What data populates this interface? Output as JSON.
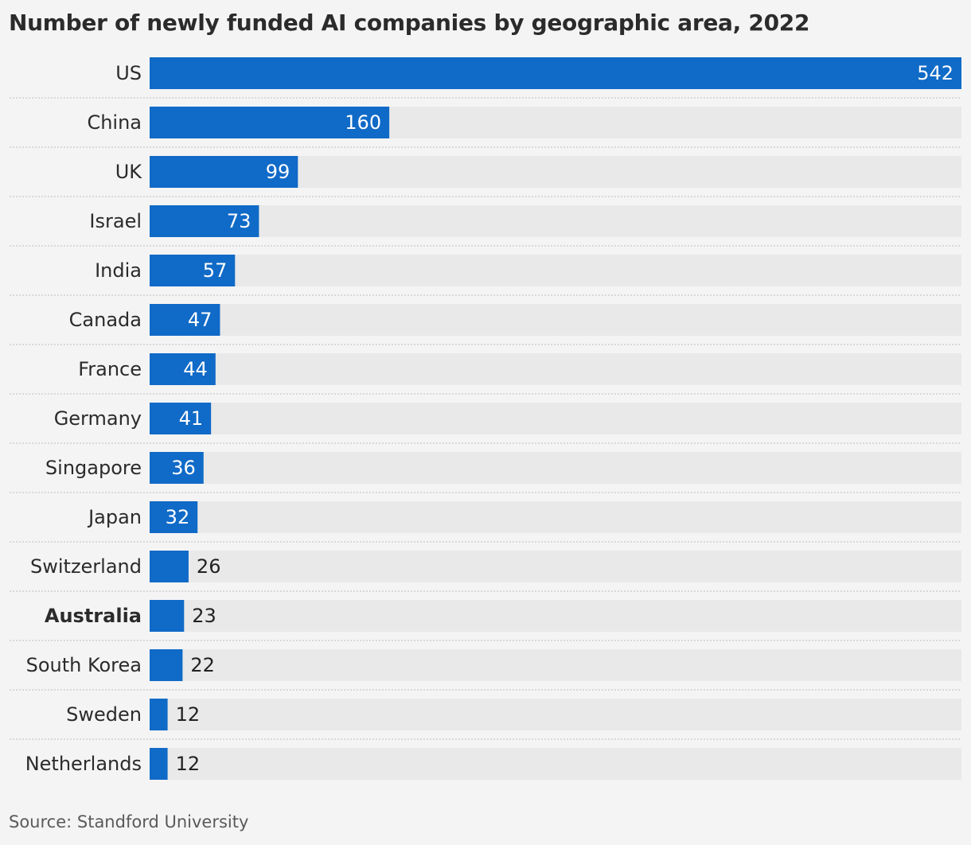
{
  "title": "Number of newly funded AI companies by geographic area, 2022",
  "source": "Source: Standford University",
  "colors": {
    "bar": "#106ac7",
    "track": "#e9e9e9",
    "label_inside": "#ffffff",
    "label_outside": "#222222",
    "separator": "#bdbdbd"
  },
  "chart_data": {
    "type": "bar",
    "orientation": "horizontal",
    "categories": [
      "US",
      "China",
      "UK",
      "Israel",
      "India",
      "Canada",
      "France",
      "Germany",
      "Singapore",
      "Japan",
      "Switzerland",
      "Australia",
      "South Korea",
      "Sweden",
      "Netherlands"
    ],
    "values": [
      542,
      160,
      99,
      73,
      57,
      47,
      44,
      41,
      36,
      32,
      26,
      23,
      22,
      12,
      12
    ],
    "highlight": "Australia",
    "xlim": [
      0,
      542
    ],
    "data_labels": true,
    "grid": false,
    "legend": "none"
  }
}
